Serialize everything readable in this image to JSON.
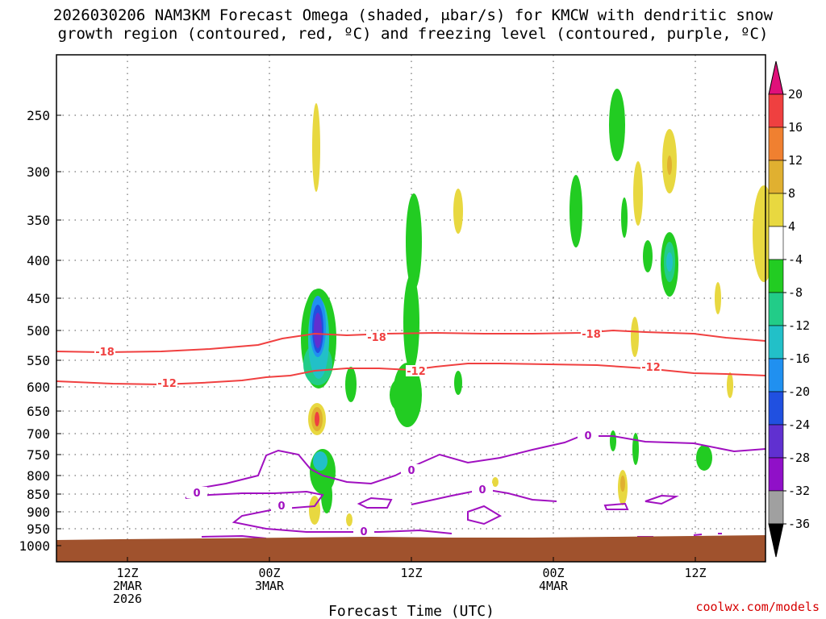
{
  "chart_data": {
    "type": "heatmap",
    "title_line1": "2026030206 NAM3KM Forecast Omega (shaded, μbar/s) for KMCW with dendritic snow",
    "title_line2": "growth region (contoured, red, ºC) and freezing level (contoured, purple, ºC)",
    "xlabel": "Forecast Time (UTC)",
    "credit": "coolwx.com/models",
    "y_axis": {
      "scale": "pressure (hPa), inverted",
      "ticks": [
        250,
        300,
        350,
        400,
        450,
        500,
        550,
        600,
        650,
        700,
        750,
        800,
        850,
        900,
        950,
        1000
      ],
      "ylim": [
        1000,
        200
      ]
    },
    "x_axis": {
      "ticks": [
        {
          "hour": 12,
          "lines": [
            "12Z",
            "2MAR",
            "2026"
          ]
        },
        {
          "hour": 24,
          "lines": [
            "00Z",
            "3MAR"
          ]
        },
        {
          "hour": 36,
          "lines": [
            "12Z"
          ]
        },
        {
          "hour": 48,
          "lines": [
            "00Z",
            "4MAR"
          ]
        },
        {
          "hour": 60,
          "lines": [
            "12Z"
          ]
        }
      ],
      "xlim": [
        6,
        66
      ]
    },
    "colorbar": {
      "labels": [
        "20",
        "16",
        "12",
        "8",
        "4",
        "-4",
        "-8",
        "-12",
        "-16",
        "-20",
        "-24",
        "-28",
        "-32",
        "-36"
      ],
      "colors": [
        "#ef4040",
        "#f08030",
        "#e0b030",
        "#e8d840",
        "#ffffff",
        "#22cc22",
        "#22cc88",
        "#22c0c8",
        "#2090f0",
        "#2050e0",
        "#6030d0",
        "#9010c8",
        "#a0a0a0"
      ],
      "top_color": "#e0107a",
      "bottom_color": "#000000"
    },
    "contours": [
      {
        "label": "-18",
        "color": "#f04040"
      },
      {
        "label": "-12",
        "color": "#f04040"
      },
      {
        "label": "0",
        "color": "#a010c0"
      }
    ],
    "terrain_color": "#a0522d"
  }
}
